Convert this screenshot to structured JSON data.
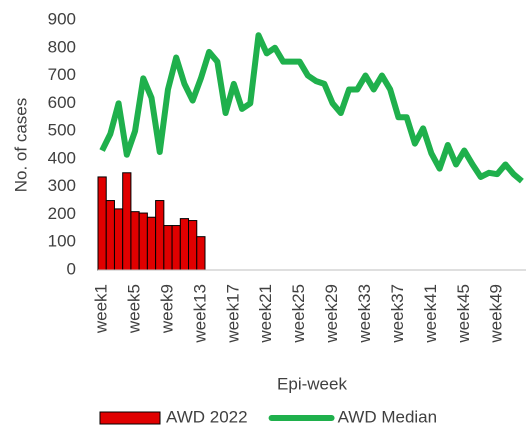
{
  "chart_data": {
    "type": "combo",
    "x_label": "Epi-week",
    "y_label": "No. of cases",
    "categories": [
      "week1",
      null,
      null,
      null,
      "week5",
      null,
      null,
      null,
      "week9",
      null,
      null,
      null,
      "week13",
      null,
      null,
      null,
      "week17",
      null,
      null,
      null,
      "week21",
      null,
      null,
      null,
      "week25",
      null,
      null,
      null,
      "week29",
      null,
      null,
      null,
      "week33",
      null,
      null,
      null,
      "week37",
      null,
      null,
      null,
      "week41",
      null,
      null,
      null,
      "week45",
      null,
      null,
      null,
      "week49",
      null,
      null,
      null
    ],
    "series": [
      {
        "name": "AWD 2022",
        "type": "bar",
        "color": "#e00000",
        "values": [
          335,
          250,
          220,
          350,
          210,
          205,
          190,
          250,
          160,
          160,
          185,
          178,
          120,
          null,
          null,
          null,
          null,
          null,
          null,
          null,
          null,
          null,
          null,
          null,
          null,
          null,
          null,
          null,
          null,
          null,
          null,
          null,
          null,
          null,
          null,
          null,
          null,
          null,
          null,
          null,
          null,
          null,
          null,
          null,
          null,
          null,
          null,
          null,
          null,
          null,
          null,
          null
        ]
      },
      {
        "name": "AWD Median",
        "type": "line",
        "color": "#1fb04c",
        "values": [
          430,
          490,
          600,
          415,
          500,
          690,
          620,
          425,
          650,
          765,
          670,
          610,
          690,
          785,
          750,
          565,
          670,
          580,
          600,
          845,
          780,
          800,
          750,
          750,
          750,
          700,
          680,
          670,
          600,
          565,
          650,
          650,
          700,
          650,
          700,
          650,
          550,
          550,
          455,
          510,
          420,
          365,
          450,
          380,
          430,
          380,
          335,
          350,
          345,
          380,
          345,
          320
        ]
      }
    ],
    "ylim": [
      0,
      900
    ],
    "yticks": [
      0,
      100,
      200,
      300,
      400,
      500,
      600,
      700,
      800,
      900
    ],
    "grid": false,
    "legend": "bottom"
  }
}
